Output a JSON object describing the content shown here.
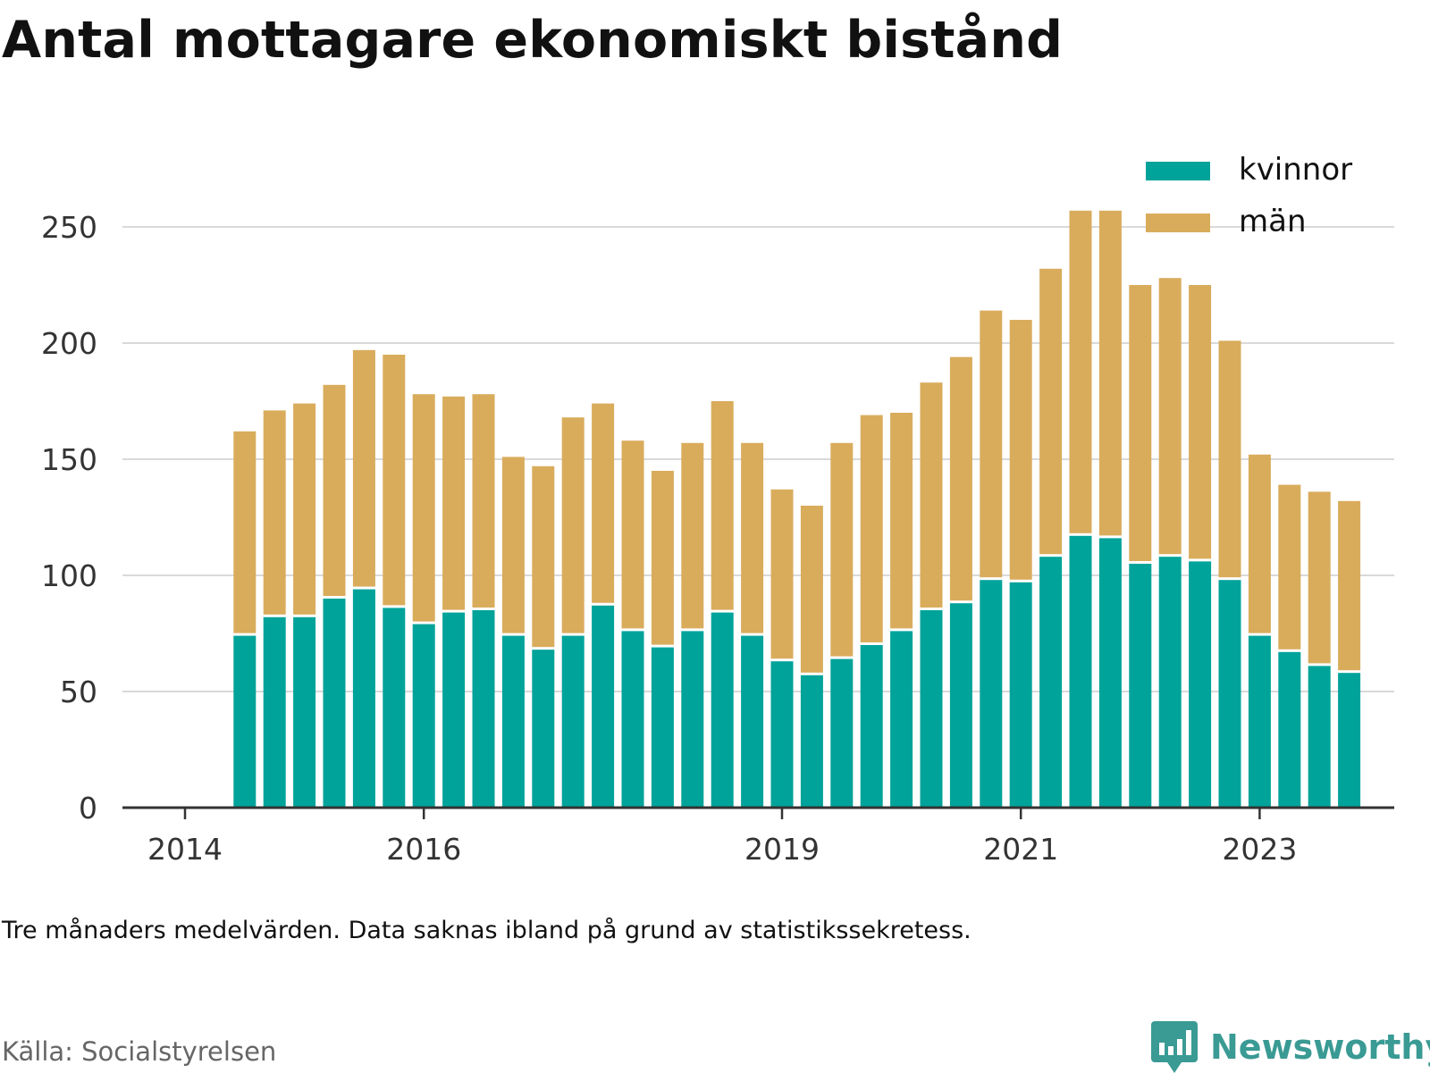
{
  "title": "Antal mottagare ekonomiskt bistånd",
  "note": "Tre månaders medelvärden. Data saknas ibland på grund av statistikssekretess.",
  "source": "Källa: Socialstyrelsen",
  "brand": {
    "name": "Newsworthy",
    "icon": "newsworthy-logo-icon",
    "color": "#3a9a94"
  },
  "chart_data": {
    "type": "bar",
    "stacked": true,
    "ylim": [
      0,
      260
    ],
    "yticks": [
      0,
      50,
      100,
      150,
      200,
      250
    ],
    "xticks": [
      "2014",
      "2016",
      "2019",
      "2021",
      "2023"
    ],
    "grid": true,
    "legend_position": "top-right",
    "colors": {
      "kvinnor": "#00a39a",
      "män": "#d9ac5c"
    },
    "categories": [
      "2014-Q2",
      "2014-Q3",
      "2014-Q4",
      "2015-Q1",
      "2015-Q2",
      "2015-Q3",
      "2015-Q4",
      "2016-Q1",
      "2016-Q2",
      "2016-Q3",
      "2016-Q4",
      "2017-Q1",
      "2017-Q2",
      "2017-Q3",
      "2017-Q4",
      "2018-Q1",
      "2018-Q2",
      "2018-Q3",
      "2018-Q4",
      "2019-Q1",
      "2019-Q2",
      "2019-Q3",
      "2019-Q4",
      "2020-Q1",
      "2020-Q2",
      "2020-Q3",
      "2020-Q4",
      "2021-Q1",
      "2021-Q2",
      "2021-Q3",
      "2021-Q4",
      "2022-Q1",
      "2022-Q2",
      "2022-Q3",
      "2022-Q4",
      "2023-Q1",
      "2023-Q2",
      "2023-Q3",
      "2023-Q4"
    ],
    "series": [
      {
        "name": "kvinnor",
        "values": [
          74,
          82,
          82,
          90,
          94,
          86,
          79,
          84,
          85,
          74,
          68,
          74,
          87,
          76,
          69,
          76,
          84,
          74,
          63,
          57,
          64,
          70,
          76,
          85,
          88,
          98,
          97,
          108,
          117,
          116,
          105,
          108,
          106,
          98,
          74,
          67,
          61,
          58,
          null
        ]
      },
      {
        "name": "män",
        "values": [
          88,
          89,
          92,
          92,
          103,
          109,
          99,
          93,
          93,
          77,
          79,
          94,
          87,
          82,
          76,
          81,
          91,
          83,
          74,
          73,
          93,
          99,
          94,
          98,
          106,
          116,
          113,
          124,
          140,
          141,
          120,
          120,
          119,
          103,
          78,
          72,
          75,
          74,
          null
        ]
      }
    ]
  }
}
